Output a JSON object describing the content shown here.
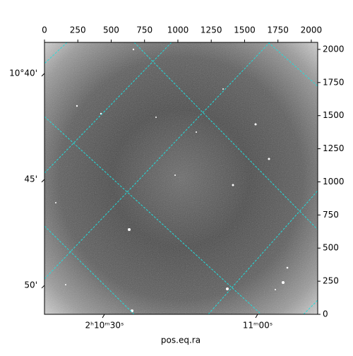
{
  "chart_data": {
    "type": "image",
    "xlabel": "pos.eq.ra",
    "xlim": [
      0,
      2048
    ],
    "xticks": [
      0,
      250,
      500,
      750,
      1000,
      1250,
      1500,
      1750,
      2000
    ],
    "ylim": [
      0,
      2053
    ],
    "yticks": [
      0,
      250,
      500,
      750,
      1000,
      1250,
      1500,
      1750,
      2000
    ],
    "ra_ticks": [
      {
        "value": 450,
        "label": "2ʰ10ᵐ30ˢ"
      },
      {
        "value": 1598,
        "label": "11ᵐ00ˢ"
      }
    ],
    "dec_ticks": [
      {
        "value": 1819,
        "label": "10°40'"
      },
      {
        "value": 1019,
        "label": "45'"
      },
      {
        "value": 219,
        "label": "50'"
      }
    ],
    "grid_color": "#22dddd"
  }
}
